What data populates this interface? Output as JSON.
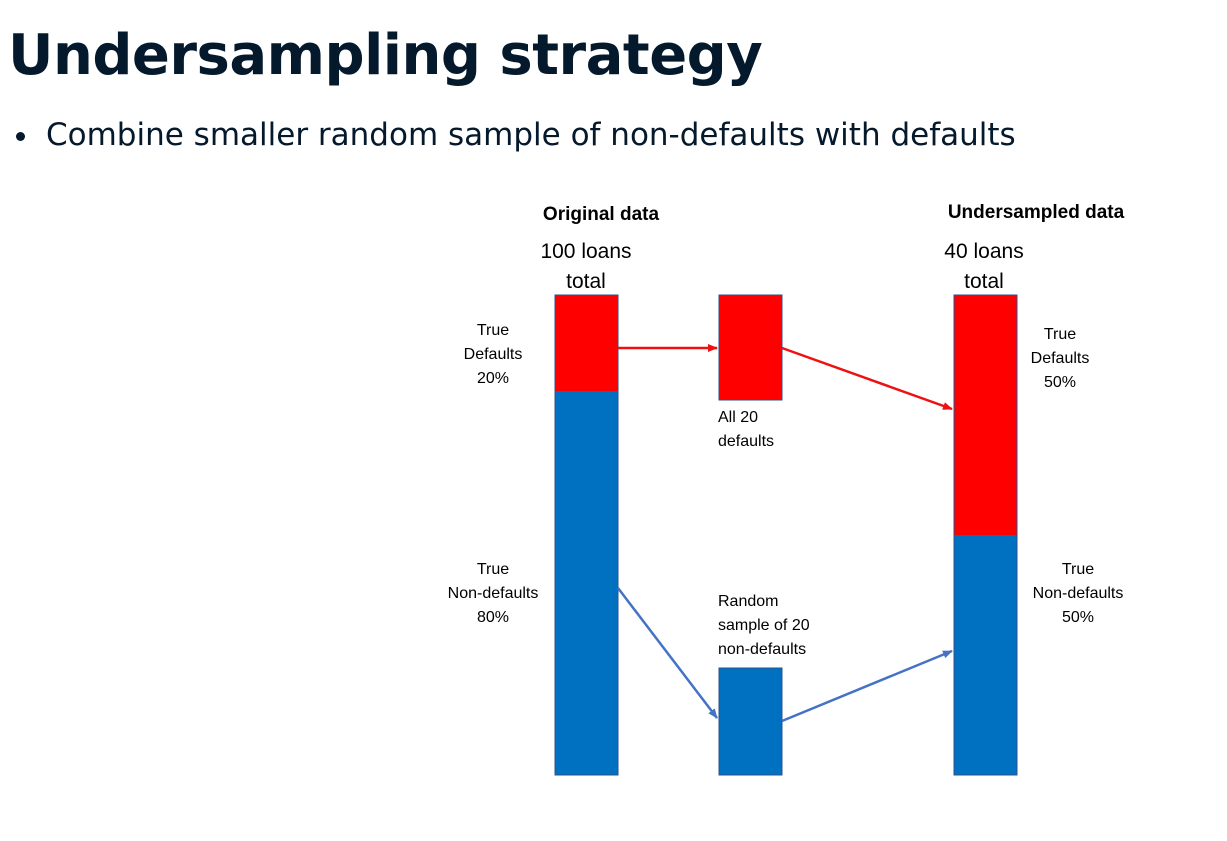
{
  "title": "Undersampling strategy",
  "bullets": [
    "Combine smaller random sample of non-defaults with defaults"
  ],
  "diagram": {
    "original": {
      "heading": "Original data",
      "count_line1": "100 loans",
      "count_line2": "total",
      "defaults_label": [
        "True",
        "Defaults",
        "20%"
      ],
      "nondefaults_label": [
        "True",
        "Non-defaults",
        "80%"
      ],
      "defaults_share": 0.2
    },
    "middle": {
      "defaults_caption": [
        "All 20",
        "defaults"
      ],
      "sample_caption": [
        "Random",
        "sample of 20",
        "non-defaults"
      ]
    },
    "undersampled": {
      "heading": "Undersampled data",
      "count_line1": "40 loans",
      "count_line2": "total",
      "defaults_label": [
        "True",
        "Defaults",
        "50%"
      ],
      "nondefaults_label": [
        "True",
        "Non-defaults",
        "50%"
      ],
      "defaults_share": 0.5
    },
    "colors": {
      "defaults": "#ff0000",
      "nondefaults": "#0070c0",
      "defaults_arrow": "#ee1111",
      "nondefaults_arrow": "#4472c4",
      "border": "#2f528f"
    }
  }
}
